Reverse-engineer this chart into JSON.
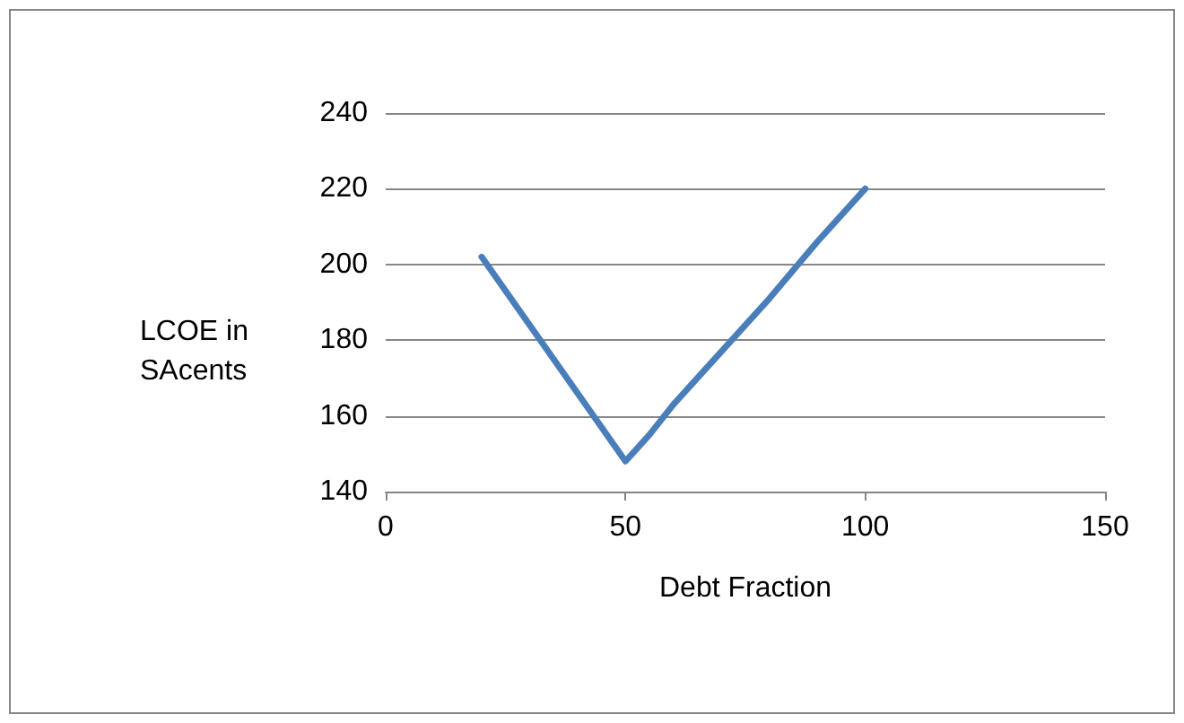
{
  "chart_data": {
    "type": "line",
    "xlabel": "Debt Fraction",
    "ylabel": "LCOE in SAcents",
    "x": [
      20,
      30,
      40,
      45,
      50,
      55,
      60,
      70,
      80,
      90,
      100
    ],
    "series": [
      {
        "color": "#4a7ebb",
        "values": [
          202,
          184,
          166,
          157,
          148,
          155,
          163,
          177,
          191,
          206,
          220
        ]
      }
    ],
    "xlim": [
      0,
      150
    ],
    "xticks": [
      0,
      50,
      100,
      150
    ],
    "ylim": [
      140,
      240
    ],
    "yticks": [
      140,
      160,
      180,
      200,
      220,
      240
    ],
    "grid": "y",
    "marker": "none",
    "line_style": "solid"
  }
}
